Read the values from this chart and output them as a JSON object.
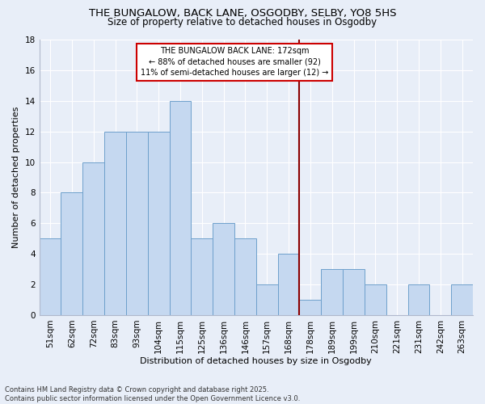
{
  "title1": "THE BUNGALOW, BACK LANE, OSGODBY, SELBY, YO8 5HS",
  "title2": "Size of property relative to detached houses in Osgodby",
  "xlabel": "Distribution of detached houses by size in Osgodby",
  "ylabel": "Number of detached properties",
  "categories": [
    "51sqm",
    "62sqm",
    "72sqm",
    "83sqm",
    "93sqm",
    "104sqm",
    "115sqm",
    "125sqm",
    "136sqm",
    "146sqm",
    "157sqm",
    "168sqm",
    "178sqm",
    "189sqm",
    "199sqm",
    "210sqm",
    "221sqm",
    "231sqm",
    "242sqm",
    "263sqm"
  ],
  "values": [
    5,
    8,
    10,
    12,
    12,
    12,
    14,
    5,
    6,
    5,
    2,
    4,
    1,
    3,
    3,
    2,
    0,
    2,
    0,
    2
  ],
  "bar_color": "#c5d8f0",
  "bar_edge_color": "#6ea0cc",
  "bg_color": "#e8eef8",
  "grid_color": "#ffffff",
  "vline_x": 12.0,
  "vline_color": "#8b0000",
  "annotation_text": "THE BUNGALOW BACK LANE: 172sqm\n← 88% of detached houses are smaller (92)\n11% of semi-detached houses are larger (12) →",
  "annotation_box_color": "#cc0000",
  "ylim": [
    0,
    18
  ],
  "yticks": [
    0,
    2,
    4,
    6,
    8,
    10,
    12,
    14,
    16,
    18
  ],
  "footer": "Contains HM Land Registry data © Crown copyright and database right 2025.\nContains public sector information licensed under the Open Government Licence v3.0.",
  "title_fontsize": 9.5,
  "subtitle_fontsize": 8.5,
  "axis_label_fontsize": 8,
  "tick_fontsize": 7.5,
  "annot_fontsize": 7,
  "footer_fontsize": 6
}
